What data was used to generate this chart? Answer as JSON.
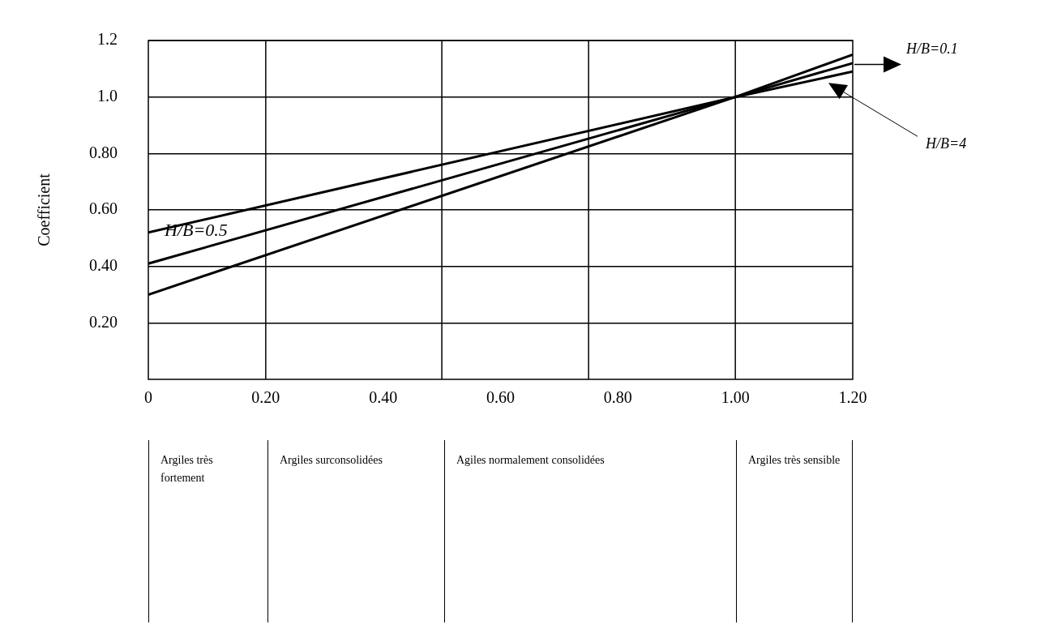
{
  "chart_data": {
    "type": "line",
    "ylabel": "Coefficient",
    "x": [
      0,
      1.0,
      1.2
    ],
    "series": [
      {
        "name": "H/B=0.5",
        "color": "#000000",
        "values": [
          0.41,
          1.0,
          1.12
        ]
      },
      {
        "name": "H/B=0.1",
        "color": "#000000",
        "values": [
          0.3,
          1.0,
          1.15
        ]
      },
      {
        "name": "H/B=4",
        "color": "#000000",
        "values": [
          0.52,
          1.0,
          1.09
        ]
      }
    ],
    "xlim": [
      0,
      1.2
    ],
    "xticks": [
      0,
      {
        "value": 0.2,
        "label": "0.20"
      },
      {
        "value": 0.4,
        "label": "0.40"
      },
      {
        "value": 0.6,
        "label": "0.60"
      },
      {
        "value": 0.8,
        "label": "0.80"
      },
      {
        "value": 1.0,
        "label": "1.00"
      },
      {
        "value": 1.2,
        "label": "1.20"
      }
    ],
    "ylim": [
      0,
      1.2
    ],
    "yticks": [
      {
        "value": 0.2,
        "label": "0.20"
      },
      {
        "value": 0.4,
        "label": "0.40"
      },
      {
        "value": 0.6,
        "label": "0.60"
      },
      {
        "value": 0.8,
        "label": "0.80"
      },
      {
        "value": 1.0,
        "label": "1.0"
      },
      1.2
    ],
    "grid": "y",
    "legend": false,
    "marker": "none",
    "line_style": "solid",
    "ref_lines": [
      {
        "axis": "x",
        "value": 0.2,
        "color": "#000000"
      },
      {
        "axis": "x",
        "value": 0.5,
        "color": "#000000"
      },
      {
        "axis": "x",
        "value": 0.75,
        "color": "#000000"
      },
      {
        "axis": "x",
        "value": 1.0,
        "color": "#000000"
      }
    ],
    "annotations": [
      "Argiles très fortement",
      "Argiles surconsolidées",
      "Agiles normalement consolidées",
      "Argiles très sensible"
    ]
  }
}
